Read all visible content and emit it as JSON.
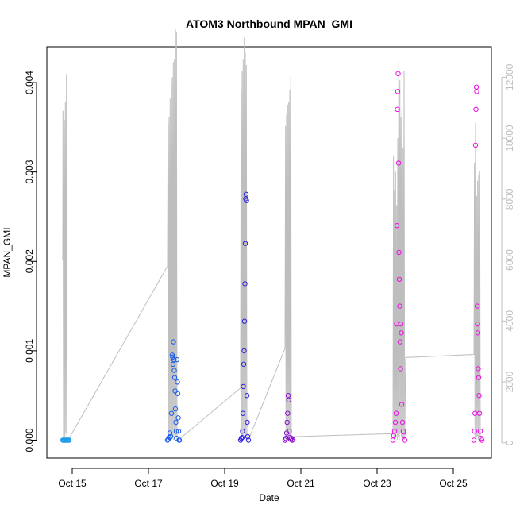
{
  "chart_data": {
    "type": "scatter",
    "title": "ATOM3 Northbound MPAN_GMI",
    "xlabel": "Date",
    "ylabel": "MPAN_GMI",
    "x_axis": {
      "type": "date",
      "range": [
        "2016-10-14T08:00",
        "2016-10-26T00:00"
      ],
      "ticks": [
        {
          "value": "2016-10-15",
          "label": "Oct 15"
        },
        {
          "value": "2016-10-17",
          "label": "Oct 17"
        },
        {
          "value": "2016-10-19",
          "label": "Oct 19"
        },
        {
          "value": "2016-10-21",
          "label": "Oct 21"
        },
        {
          "value": "2016-10-23",
          "label": "Oct 23"
        },
        {
          "value": "2016-10-25",
          "label": "Oct 25"
        }
      ]
    },
    "y_axis": {
      "range": [
        -0.0002,
        0.0044
      ],
      "ticks": [
        {
          "value": 0.0,
          "label": "0.000"
        },
        {
          "value": 0.001,
          "label": "0.001"
        },
        {
          "value": 0.002,
          "label": "0.002"
        },
        {
          "value": 0.003,
          "label": "0.003"
        },
        {
          "value": 0.004,
          "label": "0.004"
        }
      ]
    },
    "y2_axis": {
      "range": [
        -500,
        13000
      ],
      "color": "#bebebe",
      "ticks": [
        {
          "value": 0,
          "label": "0"
        },
        {
          "value": 2000,
          "label": "2000"
        },
        {
          "value": 4000,
          "label": "4000"
        },
        {
          "value": 6000,
          "label": "6000"
        },
        {
          "value": 8000,
          "label": "8000"
        },
        {
          "value": 10000,
          "label": "10000"
        },
        {
          "value": 12000,
          "label": "12000"
        }
      ]
    },
    "secondary_line": {
      "color": "#bebebe",
      "axis": "y2",
      "points": [
        [
          "2016-10-14T18:00",
          6000
        ],
        [
          "2016-10-14T18:10",
          10900
        ],
        [
          "2016-10-14T18:30",
          100
        ],
        [
          "2016-10-14T19:00",
          10600
        ],
        [
          "2016-10-14T19:20",
          200
        ],
        [
          "2016-10-14T19:40",
          11200
        ],
        [
          "2016-10-14T20:00",
          300
        ],
        [
          "2016-10-14T20:20",
          12100
        ],
        [
          "2016-10-14T20:40",
          100
        ],
        [
          "2016-10-14T21:30",
          100
        ],
        [
          "2016-10-17T12:00",
          5800
        ],
        [
          "2016-10-17T12:20",
          10500
        ],
        [
          "2016-10-17T12:40",
          100
        ],
        [
          "2016-10-17T13:00",
          10700
        ],
        [
          "2016-10-17T13:20",
          200
        ],
        [
          "2016-10-17T13:40",
          11300
        ],
        [
          "2016-10-17T14:00",
          300
        ],
        [
          "2016-10-17T14:20",
          11800
        ],
        [
          "2016-10-17T14:40",
          100
        ],
        [
          "2016-10-17T15:00",
          12000
        ],
        [
          "2016-10-17T15:20",
          200
        ],
        [
          "2016-10-17T15:40",
          12500
        ],
        [
          "2016-10-17T16:00",
          100
        ],
        [
          "2016-10-17T16:20",
          12600
        ],
        [
          "2016-10-17T16:40",
          300
        ],
        [
          "2016-10-17T17:00",
          13600
        ],
        [
          "2016-10-17T17:20",
          200
        ],
        [
          "2016-10-17T17:40",
          13500
        ],
        [
          "2016-10-17T18:00",
          100
        ],
        [
          "2016-10-17T19:00",
          100
        ],
        [
          "2016-10-19T10:00",
          1800
        ],
        [
          "2016-10-19T10:20",
          11600
        ],
        [
          "2016-10-19T10:40",
          100
        ],
        [
          "2016-10-19T11:00",
          12200
        ],
        [
          "2016-10-19T11:20",
          200
        ],
        [
          "2016-10-19T11:40",
          12600
        ],
        [
          "2016-10-19T12:00",
          300
        ],
        [
          "2016-10-19T12:20",
          13300
        ],
        [
          "2016-10-19T12:40",
          100
        ],
        [
          "2016-10-19T13:00",
          12800
        ],
        [
          "2016-10-19T13:20",
          200
        ],
        [
          "2016-10-19T13:40",
          12400
        ],
        [
          "2016-10-19T14:00",
          100
        ],
        [
          "2016-10-19T15:00",
          100
        ],
        [
          "2016-10-20T14:00",
          3100
        ],
        [
          "2016-10-20T14:20",
          10400
        ],
        [
          "2016-10-20T14:40",
          100
        ],
        [
          "2016-10-20T15:00",
          10800
        ],
        [
          "2016-10-20T15:20",
          200
        ],
        [
          "2016-10-20T15:40",
          11100
        ],
        [
          "2016-10-20T16:00",
          300
        ],
        [
          "2016-10-20T16:20",
          11200
        ],
        [
          "2016-10-20T16:40",
          100
        ],
        [
          "2016-10-20T17:00",
          11600
        ],
        [
          "2016-10-20T17:20",
          200
        ],
        [
          "2016-10-20T17:40",
          12000
        ],
        [
          "2016-10-20T18:00",
          100
        ],
        [
          "2016-10-20T19:00",
          200
        ],
        [
          "2016-10-23T10:00",
          300
        ],
        [
          "2016-10-23T10:20",
          9400
        ],
        [
          "2016-10-23T10:40",
          100
        ],
        [
          "2016-10-23T11:00",
          8300
        ],
        [
          "2016-10-23T11:20",
          200
        ],
        [
          "2016-10-23T11:40",
          8900
        ],
        [
          "2016-10-23T12:00",
          300
        ],
        [
          "2016-10-23T12:20",
          7800
        ],
        [
          "2016-10-23T12:40",
          100
        ],
        [
          "2016-10-23T13:00",
          10000
        ],
        [
          "2016-10-23T13:20",
          200
        ],
        [
          "2016-10-23T13:40",
          12500
        ],
        [
          "2016-10-23T14:00",
          100
        ],
        [
          "2016-10-23T14:20",
          11900
        ],
        [
          "2016-10-23T14:40",
          300
        ],
        [
          "2016-10-23T15:00",
          10700
        ],
        [
          "2016-10-23T15:20",
          200
        ],
        [
          "2016-10-23T15:40",
          11000
        ],
        [
          "2016-10-23T16:00",
          100
        ],
        [
          "2016-10-23T16:20",
          9700
        ],
        [
          "2016-10-23T16:40",
          200
        ],
        [
          "2016-10-23T17:00",
          12200
        ],
        [
          "2016-10-23T17:20",
          100
        ],
        [
          "2016-10-23T18:00",
          2800
        ],
        [
          "2016-10-25T13:00",
          2900
        ],
        [
          "2016-10-25T13:20",
          9200
        ],
        [
          "2016-10-25T13:40",
          200
        ],
        [
          "2016-10-25T14:00",
          10500
        ],
        [
          "2016-10-25T14:20",
          100
        ],
        [
          "2016-10-25T14:40",
          8100
        ],
        [
          "2016-10-25T15:00",
          200
        ],
        [
          "2016-10-25T15:20",
          8600
        ],
        [
          "2016-10-25T15:40",
          100
        ],
        [
          "2016-10-25T16:00",
          8800
        ],
        [
          "2016-10-25T16:20",
          200
        ],
        [
          "2016-10-25T16:40",
          8900
        ],
        [
          "2016-10-25T17:00",
          100
        ],
        [
          "2016-10-25T18:00",
          100
        ]
      ]
    },
    "series": [
      {
        "color": "#1e9ce6",
        "points": [
          [
            "2016-10-14T18:00",
            0.0
          ],
          [
            "2016-10-14T18:30",
            0.0
          ],
          [
            "2016-10-14T19:00",
            0.0
          ],
          [
            "2016-10-14T19:30",
            0.0
          ],
          [
            "2016-10-14T20:00",
            0.0
          ],
          [
            "2016-10-14T20:30",
            0.0
          ],
          [
            "2016-10-14T21:00",
            0.0
          ],
          [
            "2016-10-14T21:30",
            0.0
          ],
          [
            "2016-10-14T22:00",
            0.0
          ]
        ]
      },
      {
        "color": "#1a5cf0",
        "points": [
          [
            "2016-10-17T12:00",
            0.0
          ],
          [
            "2016-10-17T12:30",
            1e-05
          ],
          [
            "2016-10-17T13:00",
            3e-05
          ],
          [
            "2016-10-17T13:30",
            8e-05
          ],
          [
            "2016-10-17T14:00",
            4e-05
          ],
          [
            "2016-10-17T14:30",
            0.0003
          ],
          [
            "2016-10-17T15:00",
            0.00095
          ],
          [
            "2016-10-17T15:15",
            0.00093
          ],
          [
            "2016-10-17T15:30",
            0.00085
          ],
          [
            "2016-10-17T15:45",
            0.0011
          ],
          [
            "2016-10-17T16:00",
            0.0009
          ],
          [
            "2016-10-17T16:15",
            0.00078
          ],
          [
            "2016-10-17T16:30",
            0.0007
          ],
          [
            "2016-10-17T16:45",
            0.00055
          ],
          [
            "2016-10-17T17:00",
            0.00035
          ],
          [
            "2016-10-17T17:15",
            0.0002
          ],
          [
            "2016-10-17T17:30",
            0.0001
          ],
          [
            "2016-10-17T17:45",
            2e-05
          ],
          [
            "2016-10-17T18:00",
            0.0009
          ],
          [
            "2016-10-17T18:15",
            0.00065
          ],
          [
            "2016-10-17T18:30",
            0.00052
          ],
          [
            "2016-10-17T18:45",
            0.00025
          ],
          [
            "2016-10-17T19:00",
            0.0001
          ],
          [
            "2016-10-17T19:15",
            0.0
          ],
          [
            "2016-10-17T19:30",
            0.0
          ]
        ]
      },
      {
        "color": "#2b1fe0",
        "points": [
          [
            "2016-10-19T10:00",
            0.0
          ],
          [
            "2016-10-19T10:30",
            2e-05
          ],
          [
            "2016-10-19T11:00",
            3e-05
          ],
          [
            "2016-10-19T11:15",
            0.0001
          ],
          [
            "2016-10-19T11:30",
            0.0003
          ],
          [
            "2016-10-19T11:45",
            0.0006
          ],
          [
            "2016-10-19T12:00",
            0.00085
          ],
          [
            "2016-10-19T12:15",
            0.001
          ],
          [
            "2016-10-19T12:30",
            0.00133
          ],
          [
            "2016-10-19T12:45",
            0.00175
          ],
          [
            "2016-10-19T13:00",
            0.0022
          ],
          [
            "2016-10-19T13:15",
            0.0027
          ],
          [
            "2016-10-19T13:30",
            0.00275
          ],
          [
            "2016-10-19T13:45",
            0.00268
          ],
          [
            "2016-10-19T14:00",
            0.0005
          ],
          [
            "2016-10-19T14:15",
            0.0002
          ],
          [
            "2016-10-19T14:30",
            4e-05
          ],
          [
            "2016-10-19T15:00",
            0.0
          ]
        ]
      },
      {
        "color": "#8a10d0",
        "points": [
          [
            "2016-10-20T14:00",
            0.0
          ],
          [
            "2016-10-20T14:30",
            2e-05
          ],
          [
            "2016-10-20T15:00",
            8e-05
          ],
          [
            "2016-10-20T15:20",
            0.0002
          ],
          [
            "2016-10-20T15:40",
            0.0003
          ],
          [
            "2016-10-20T16:00",
            0.0005
          ],
          [
            "2016-10-20T16:20",
            0.00045
          ],
          [
            "2016-10-20T16:40",
            0.0001
          ],
          [
            "2016-10-20T17:00",
            3e-05
          ],
          [
            "2016-10-20T17:30",
            1e-05
          ],
          [
            "2016-10-20T18:00",
            2e-05
          ],
          [
            "2016-10-20T18:30",
            0.0
          ],
          [
            "2016-10-20T19:00",
            1e-05
          ]
        ]
      },
      {
        "color": "#ee10e6",
        "points": [
          [
            "2016-10-23T10:00",
            0.0
          ],
          [
            "2016-10-23T10:30",
            5e-05
          ],
          [
            "2016-10-23T11:00",
            0.0001
          ],
          [
            "2016-10-23T11:30",
            0.0002
          ],
          [
            "2016-10-23T12:00",
            0.0003
          ],
          [
            "2016-10-23T12:15",
            0.0013
          ],
          [
            "2016-10-23T12:30",
            0.0024
          ],
          [
            "2016-10-23T12:45",
            0.0037
          ],
          [
            "2016-10-23T13:00",
            0.0039
          ],
          [
            "2016-10-23T13:15",
            0.0041
          ],
          [
            "2016-10-23T13:30",
            0.0031
          ],
          [
            "2016-10-23T13:45",
            0.0021
          ],
          [
            "2016-10-23T14:00",
            0.0018
          ],
          [
            "2016-10-23T14:15",
            0.0015
          ],
          [
            "2016-10-23T14:30",
            0.0011
          ],
          [
            "2016-10-23T14:45",
            0.0008
          ],
          [
            "2016-10-23T15:00",
            0.0013
          ],
          [
            "2016-10-23T15:15",
            0.0012
          ],
          [
            "2016-10-23T15:30",
            0.0004
          ],
          [
            "2016-10-23T16:00",
            0.0002
          ],
          [
            "2016-10-23T16:30",
            0.0001
          ],
          [
            "2016-10-23T17:00",
            5e-05
          ],
          [
            "2016-10-23T17:30",
            0.0
          ]
        ]
      },
      {
        "color": "#ee10e6",
        "points": [
          [
            "2016-10-25T13:00",
            0.0
          ],
          [
            "2016-10-25T13:20",
            0.0001
          ],
          [
            "2016-10-25T13:40",
            0.0003
          ],
          [
            "2016-10-25T14:00",
            0.0033
          ],
          [
            "2016-10-25T14:15",
            0.0037
          ],
          [
            "2016-10-25T14:30",
            0.00395
          ],
          [
            "2016-10-25T14:45",
            0.0039
          ],
          [
            "2016-10-25T15:00",
            0.0015
          ],
          [
            "2016-10-25T15:15",
            0.0013
          ],
          [
            "2016-10-25T15:30",
            0.0012
          ],
          [
            "2016-10-25T15:45",
            0.0008
          ],
          [
            "2016-10-25T16:00",
            0.0007
          ],
          [
            "2016-10-25T16:15",
            0.0005
          ],
          [
            "2016-10-25T16:30",
            0.0003
          ],
          [
            "2016-10-25T17:00",
            0.0001
          ],
          [
            "2016-10-25T17:30",
            2e-05
          ],
          [
            "2016-10-25T18:00",
            0.0
          ]
        ]
      }
    ],
    "grid": false,
    "legend": "none"
  }
}
